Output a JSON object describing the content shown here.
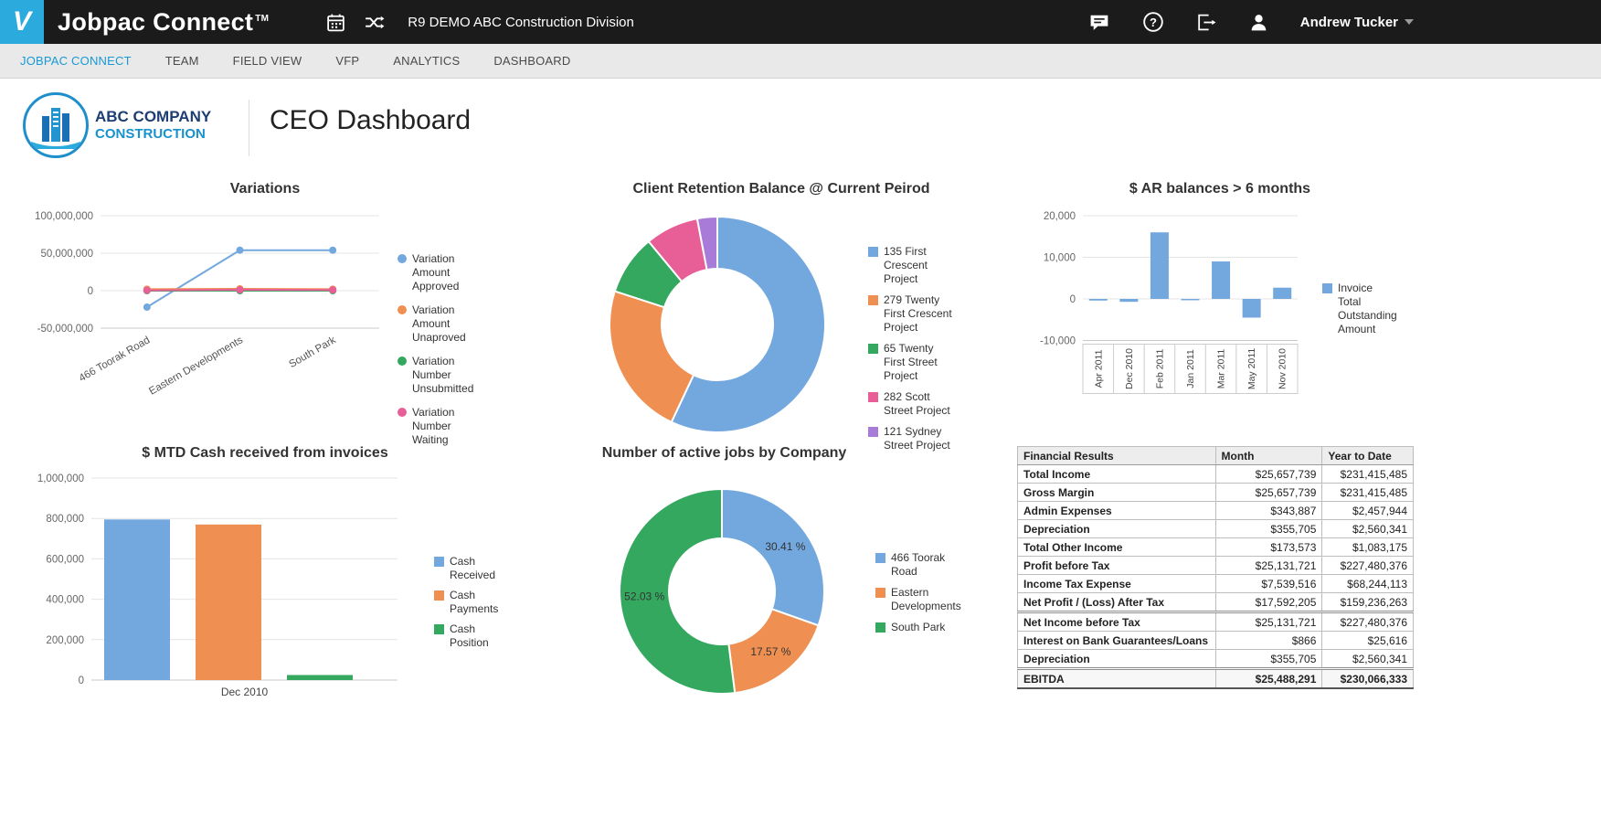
{
  "header": {
    "brand": "Jobpac Connect",
    "brand_tm": "TM",
    "division": "R9 DEMO ABC Construction Division",
    "user": "Andrew Tucker"
  },
  "nav": {
    "items": [
      {
        "label": "JOBPAC CONNECT",
        "active": true
      },
      {
        "label": "TEAM",
        "active": false
      },
      {
        "label": "FIELD VIEW",
        "active": false
      },
      {
        "label": "VFP",
        "active": false
      },
      {
        "label": "ANALYTICS",
        "active": false
      },
      {
        "label": "DASHBOARD",
        "active": false
      }
    ]
  },
  "page": {
    "company_line1": "ABC COMPANY",
    "company_line2": "CONSTRUCTION",
    "title": "CEO Dashboard"
  },
  "colors": {
    "accent_blue": "#2baade",
    "series_blue": "#72a8de",
    "series_orange": "#ef9052",
    "series_green": "#35a860",
    "series_pink": "#e75f96",
    "series_purple": "#a87bd8"
  },
  "chart_data": [
    {
      "id": "variations",
      "type": "line",
      "title": "Variations",
      "categories": [
        "466 Toorak Road",
        "Eastern Developments",
        "South Park"
      ],
      "ylim": [
        -50000000,
        100000000
      ],
      "ytick_step": 50000000,
      "grid": true,
      "legend_position": "right",
      "series": [
        {
          "name": "Variation Amount Approved",
          "color": "#72a8de",
          "values": [
            -22000000,
            54000000,
            54000000
          ]
        },
        {
          "name": "Variation Amount Unaproved",
          "color": "#ef9052",
          "values": [
            2000000,
            2500000,
            2000000
          ]
        },
        {
          "name": "Variation Number Unsubmitted",
          "color": "#35a860",
          "values": [
            0,
            0,
            0
          ]
        },
        {
          "name": "Variation Number Waiting",
          "color": "#e75f96",
          "values": [
            500000,
            1200000,
            900000
          ]
        }
      ]
    },
    {
      "id": "retention",
      "type": "pie",
      "title": "Client Retention Balance @ Current Peirod",
      "legend_position": "right",
      "slices": [
        {
          "name": "135 First Crescent Project",
          "color": "#72a8de",
          "pct": 57
        },
        {
          "name": "279 Twenty First Crescent Project",
          "color": "#ef9052",
          "pct": 23
        },
        {
          "name": "65 Twenty First Street Project",
          "color": "#35a860",
          "pct": 9
        },
        {
          "name": "282 Scott Street Project",
          "color": "#e75f96",
          "pct": 8
        },
        {
          "name": "121 Sydney Street Project",
          "color": "#a87bd8",
          "pct": 3
        }
      ]
    },
    {
      "id": "ar_balances",
      "type": "bar",
      "title": "$ AR balances > 6 months",
      "categories": [
        "Apr 2011",
        "Dec 2010",
        "Feb 2011",
        "Jan 2011",
        "Mar 2011",
        "May 2011",
        "Nov 2010"
      ],
      "ylim": [
        -10000,
        20000
      ],
      "ytick_step": 10000,
      "grid": true,
      "legend_position": "right",
      "series": [
        {
          "name": "Invoice Total Outstanding Amount",
          "color": "#72a8de",
          "values": [
            -400,
            -700,
            16000,
            -300,
            9000,
            -4500,
            2700
          ]
        }
      ]
    },
    {
      "id": "mtd_cash",
      "type": "bar",
      "title": "$ MTD Cash received from invoices",
      "categories": [
        "Dec 2010"
      ],
      "ylim": [
        0,
        1000000
      ],
      "ytick_step": 200000,
      "grid": true,
      "legend_position": "right",
      "series": [
        {
          "name": "Cash Received",
          "color": "#72a8de",
          "values": [
            795000
          ]
        },
        {
          "name": "Cash Payments",
          "color": "#ef9052",
          "values": [
            770000
          ]
        },
        {
          "name": "Cash Position",
          "color": "#35a860",
          "values": [
            25000
          ]
        }
      ]
    },
    {
      "id": "active_jobs",
      "type": "pie",
      "title": "Number of active jobs by Company",
      "legend_position": "right",
      "slices": [
        {
          "name": "466 Toorak Road",
          "color": "#72a8de",
          "pct": 30.41,
          "label": "30.41 %"
        },
        {
          "name": "Eastern Developments",
          "color": "#ef9052",
          "pct": 17.57,
          "label": "17.57 %"
        },
        {
          "name": "South Park",
          "color": "#35a860",
          "pct": 52.03,
          "label": "52.03 %"
        }
      ]
    }
  ],
  "financial_table": {
    "headers": [
      "Financial Results",
      "Month",
      "Year to Date"
    ],
    "rows": [
      {
        "label": "Total Income",
        "month": "$25,657,739",
        "ytd": "$231,415,485"
      },
      {
        "label": "Gross Margin",
        "month": "$25,657,739",
        "ytd": "$231,415,485"
      },
      {
        "label": "Admin Expenses",
        "month": "$343,887",
        "ytd": "$2,457,944"
      },
      {
        "label": "Depreciation",
        "month": "$355,705",
        "ytd": "$2,560,341"
      },
      {
        "label": "Total Other Income",
        "month": "$173,573",
        "ytd": "$1,083,175"
      },
      {
        "label": "Profit before Tax",
        "month": "$25,131,721",
        "ytd": "$227,480,376"
      },
      {
        "label": "Income Tax Expense",
        "month": "$7,539,516",
        "ytd": "$68,244,113"
      },
      {
        "label": "Net Profit / (Loss) After Tax",
        "month": "$17,592,205",
        "ytd": "$159,236,263",
        "group_end": true
      },
      {
        "label": "Net Income before Tax",
        "month": "$25,131,721",
        "ytd": "$227,480,376"
      },
      {
        "label": "Interest on Bank Guarantees/Loans",
        "month": "$866",
        "ytd": "$25,616"
      },
      {
        "label": "Depreciation",
        "month": "$355,705",
        "ytd": "$2,560,341",
        "group_end": true
      },
      {
        "label": "EBITDA",
        "month": "$25,488,291",
        "ytd": "$230,066,333",
        "bold": true
      }
    ]
  }
}
